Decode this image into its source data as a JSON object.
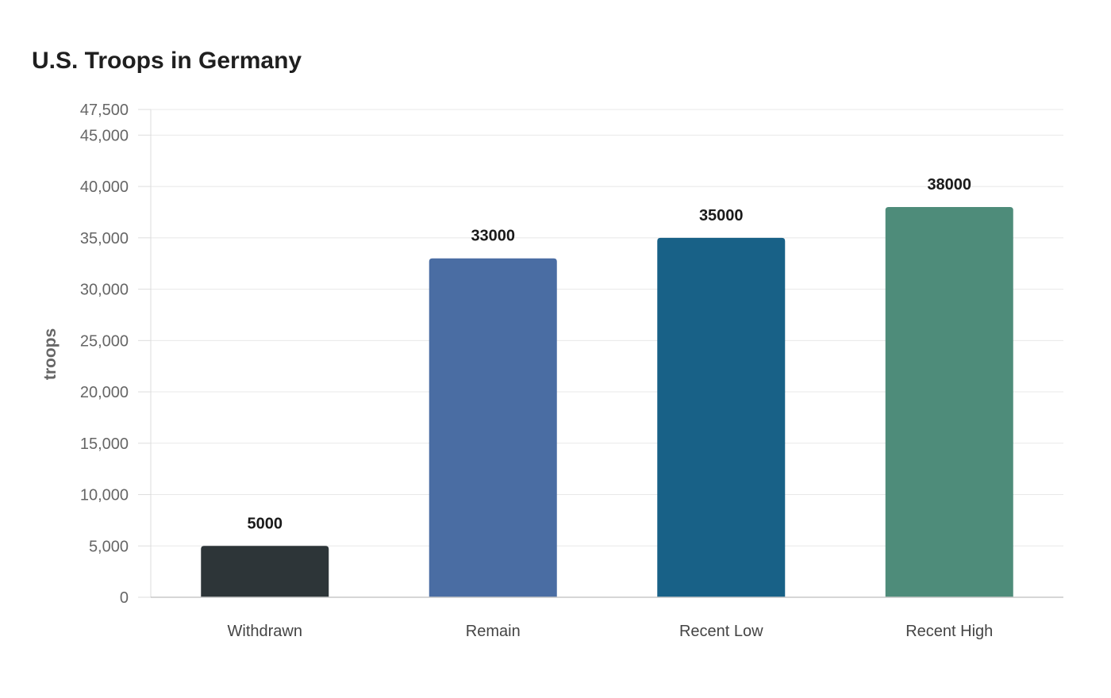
{
  "chart_data": {
    "type": "bar",
    "title": "U.S. Troops in Germany",
    "xlabel": "",
    "ylabel": "troops",
    "categories": [
      "Withdrawn",
      "Remain",
      "Recent Low",
      "Recent High"
    ],
    "values": [
      5000,
      33000,
      35000,
      38000
    ],
    "data_labels": [
      "5000",
      "33000",
      "35000",
      "38000"
    ],
    "colors": [
      "#2d3538",
      "#4a6da3",
      "#186187",
      "#4e8c7a"
    ],
    "ylim": [
      0,
      47500
    ],
    "yticks": [
      0,
      5000,
      10000,
      15000,
      20000,
      25000,
      30000,
      35000,
      40000,
      45000,
      47500
    ],
    "ytick_labels": [
      "0",
      "5,000",
      "10,000",
      "15,000",
      "20,000",
      "25,000",
      "30,000",
      "35,000",
      "40,000",
      "45,000",
      "47,500"
    ],
    "grid": true,
    "legend": "none"
  }
}
